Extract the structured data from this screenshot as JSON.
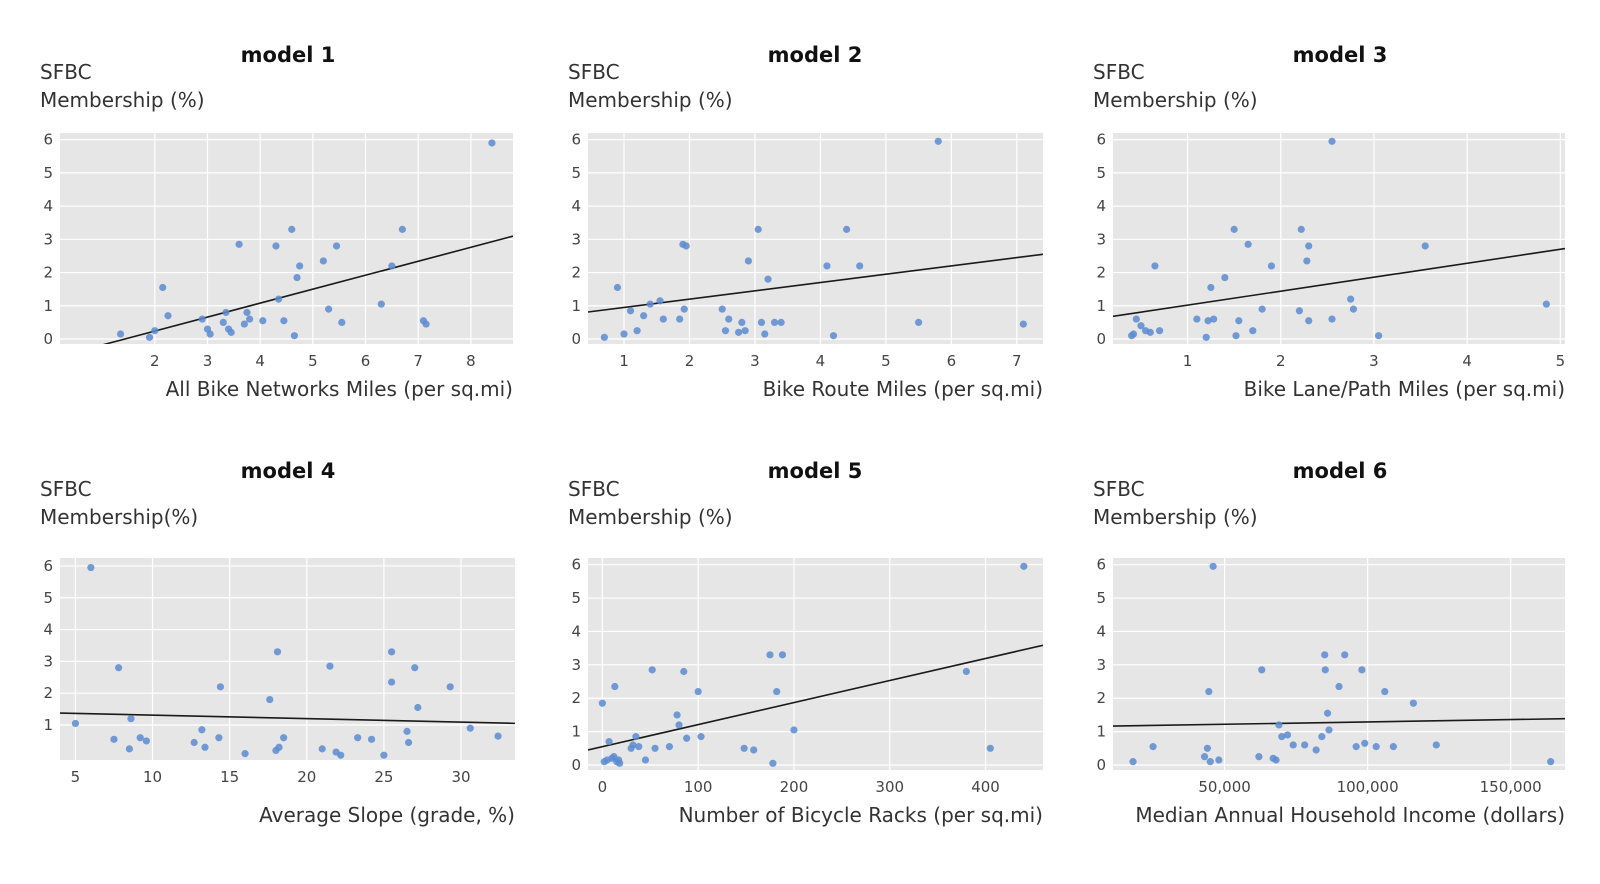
{
  "chart_data": [
    {
      "type": "scatter",
      "title": "model 1",
      "ylabel_lines": [
        "SFBC",
        "Membership (%)"
      ],
      "xlabel": "All Bike Networks Miles (per sq.mi)",
      "xlim": [
        0.2,
        8.8
      ],
      "ylim": [
        -0.15,
        6.2
      ],
      "xticks": [
        2,
        3,
        4,
        5,
        6,
        7,
        8
      ],
      "xtick_labels": [
        "2",
        "3",
        "4",
        "5",
        "6",
        "7",
        "8"
      ],
      "yticks": [
        0,
        1,
        2,
        3,
        4,
        5,
        6
      ],
      "ytick_labels": [
        "0",
        "1",
        "2",
        "3",
        "4",
        "5",
        "6"
      ],
      "points": [
        [
          1.35,
          0.15
        ],
        [
          1.9,
          0.05
        ],
        [
          2.0,
          0.25
        ],
        [
          2.15,
          1.55
        ],
        [
          2.25,
          0.7
        ],
        [
          2.9,
          0.6
        ],
        [
          3.0,
          0.3
        ],
        [
          3.05,
          0.15
        ],
        [
          3.3,
          0.5
        ],
        [
          3.35,
          0.8
        ],
        [
          3.4,
          0.3
        ],
        [
          3.45,
          0.2
        ],
        [
          3.6,
          2.85
        ],
        [
          3.7,
          0.45
        ],
        [
          3.75,
          0.8
        ],
        [
          3.8,
          0.6
        ],
        [
          4.05,
          0.55
        ],
        [
          4.3,
          2.8
        ],
        [
          4.35,
          1.2
        ],
        [
          4.45,
          0.55
        ],
        [
          4.6,
          3.3
        ],
        [
          4.65,
          0.1
        ],
        [
          4.7,
          1.85
        ],
        [
          4.75,
          2.2
        ],
        [
          5.2,
          2.35
        ],
        [
          5.3,
          0.9
        ],
        [
          5.45,
          2.8
        ],
        [
          5.55,
          0.5
        ],
        [
          6.3,
          1.05
        ],
        [
          6.5,
          2.2
        ],
        [
          6.7,
          3.3
        ],
        [
          7.1,
          0.55
        ],
        [
          7.15,
          0.45
        ],
        [
          8.4,
          5.9
        ]
      ],
      "fit": {
        "slope": 0.42,
        "intercept": -0.6
      }
    },
    {
      "type": "scatter",
      "title": "model 2",
      "ylabel_lines": [
        "SFBC",
        "Membership (%)"
      ],
      "xlabel": "Bike Route Miles (per sq.mi)",
      "xlim": [
        0.45,
        7.4
      ],
      "ylim": [
        -0.15,
        6.2
      ],
      "xticks": [
        1,
        2,
        3,
        4,
        5,
        6,
        7
      ],
      "xtick_labels": [
        "1",
        "2",
        "3",
        "4",
        "5",
        "6",
        "7"
      ],
      "yticks": [
        0,
        1,
        2,
        3,
        4,
        5,
        6
      ],
      "ytick_labels": [
        "0",
        "1",
        "2",
        "3",
        "4",
        "5",
        "6"
      ],
      "points": [
        [
          0.7,
          0.05
        ],
        [
          0.9,
          1.55
        ],
        [
          1.0,
          0.15
        ],
        [
          1.1,
          0.85
        ],
        [
          1.2,
          0.25
        ],
        [
          1.3,
          0.7
        ],
        [
          1.4,
          1.05
        ],
        [
          1.55,
          1.15
        ],
        [
          1.6,
          0.6
        ],
        [
          1.85,
          0.6
        ],
        [
          1.9,
          2.85
        ],
        [
          1.92,
          0.9
        ],
        [
          1.95,
          2.8
        ],
        [
          2.5,
          0.9
        ],
        [
          2.55,
          0.25
        ],
        [
          2.6,
          0.6
        ],
        [
          2.75,
          0.2
        ],
        [
          2.8,
          0.5
        ],
        [
          2.85,
          0.25
        ],
        [
          2.9,
          2.35
        ],
        [
          3.05,
          3.3
        ],
        [
          3.1,
          0.5
        ],
        [
          3.15,
          0.15
        ],
        [
          3.2,
          1.8
        ],
        [
          3.3,
          0.5
        ],
        [
          3.4,
          0.5
        ],
        [
          4.1,
          2.2
        ],
        [
          4.2,
          0.1
        ],
        [
          4.4,
          3.3
        ],
        [
          4.6,
          2.2
        ],
        [
          5.5,
          0.5
        ],
        [
          5.8,
          5.95
        ],
        [
          7.1,
          0.45
        ]
      ],
      "fit": {
        "slope": 0.25,
        "intercept": 0.7
      }
    },
    {
      "type": "scatter",
      "title": "model 3",
      "ylabel_lines": [
        "SFBC",
        "Membership (%)"
      ],
      "xlabel": "Bike Lane/Path Miles (per sq.mi)",
      "xlim": [
        0.2,
        5.05
      ],
      "ylim": [
        -0.15,
        6.2
      ],
      "xticks": [
        1,
        2,
        3,
        4,
        5
      ],
      "xtick_labels": [
        "1",
        "2",
        "3",
        "4",
        "5"
      ],
      "yticks": [
        0,
        1,
        2,
        3,
        4,
        5,
        6
      ],
      "ytick_labels": [
        "0",
        "1",
        "2",
        "3",
        "4",
        "5",
        "6"
      ],
      "points": [
        [
          0.4,
          0.1
        ],
        [
          0.42,
          0.15
        ],
        [
          0.45,
          0.6
        ],
        [
          0.5,
          0.4
        ],
        [
          0.55,
          0.25
        ],
        [
          0.6,
          0.2
        ],
        [
          0.65,
          2.2
        ],
        [
          0.7,
          0.25
        ],
        [
          1.1,
          0.6
        ],
        [
          1.2,
          0.05
        ],
        [
          1.22,
          0.55
        ],
        [
          1.25,
          1.55
        ],
        [
          1.28,
          0.6
        ],
        [
          1.4,
          1.85
        ],
        [
          1.5,
          3.3
        ],
        [
          1.52,
          0.1
        ],
        [
          1.55,
          0.55
        ],
        [
          1.65,
          2.85
        ],
        [
          1.7,
          0.25
        ],
        [
          1.8,
          0.9
        ],
        [
          1.9,
          2.2
        ],
        [
          2.2,
          0.85
        ],
        [
          2.22,
          3.3
        ],
        [
          2.28,
          2.35
        ],
        [
          2.3,
          2.8
        ],
        [
          2.3,
          0.55
        ],
        [
          2.55,
          5.95
        ],
        [
          2.55,
          0.6
        ],
        [
          2.75,
          1.2
        ],
        [
          2.78,
          0.9
        ],
        [
          3.05,
          0.1
        ],
        [
          3.55,
          2.8
        ],
        [
          4.85,
          1.05
        ]
      ],
      "fit": {
        "slope": 0.42,
        "intercept": 0.6
      }
    },
    {
      "type": "scatter",
      "title": "model 4",
      "ylabel_lines": [
        "SFBC",
        "Membership(%)"
      ],
      "xlabel": "Average Slope (grade, %)",
      "xlim": [
        4.0,
        33.5
      ],
      "ylim": [
        -0.1,
        6.25
      ],
      "xticks": [
        5,
        10,
        15,
        20,
        25,
        30
      ],
      "xtick_labels": [
        "5",
        "10",
        "15",
        "20",
        "25",
        "30"
      ],
      "yticks": [
        1,
        2,
        3,
        4,
        5,
        6
      ],
      "ytick_labels": [
        "1",
        "2",
        "3",
        "4",
        "5",
        "6"
      ],
      "points": [
        [
          5.0,
          1.05
        ],
        [
          6.0,
          5.95
        ],
        [
          7.5,
          0.55
        ],
        [
          7.8,
          2.8
        ],
        [
          8.5,
          0.25
        ],
        [
          8.6,
          1.2
        ],
        [
          9.2,
          0.6
        ],
        [
          9.6,
          0.5
        ],
        [
          12.7,
          0.45
        ],
        [
          13.2,
          0.85
        ],
        [
          13.4,
          0.3
        ],
        [
          14.3,
          0.6
        ],
        [
          14.4,
          2.2
        ],
        [
          16.0,
          0.1
        ],
        [
          17.6,
          1.8
        ],
        [
          18.0,
          0.2
        ],
        [
          18.1,
          3.3
        ],
        [
          18.2,
          0.3
        ],
        [
          18.5,
          0.6
        ],
        [
          21.0,
          0.25
        ],
        [
          21.5,
          2.85
        ],
        [
          21.9,
          0.15
        ],
        [
          22.2,
          0.05
        ],
        [
          23.3,
          0.6
        ],
        [
          24.2,
          0.55
        ],
        [
          25.0,
          0.05
        ],
        [
          25.5,
          3.3
        ],
        [
          25.5,
          2.35
        ],
        [
          26.5,
          0.8
        ],
        [
          26.6,
          0.45
        ],
        [
          27.0,
          2.8
        ],
        [
          27.2,
          1.55
        ],
        [
          29.3,
          2.2
        ],
        [
          30.6,
          0.9
        ],
        [
          32.4,
          0.65
        ]
      ],
      "fit": {
        "slope": -0.011,
        "intercept": 1.42
      }
    },
    {
      "type": "scatter",
      "title": "model 5",
      "ylabel_lines": [
        "SFBC",
        "Membership (%)"
      ],
      "xlabel": "Number of Bicycle Racks (per sq.mi)",
      "xlim": [
        -15,
        460
      ],
      "ylim": [
        -0.15,
        6.2
      ],
      "xticks": [
        0,
        100,
        200,
        300,
        400
      ],
      "xtick_labels": [
        "0",
        "100",
        "200",
        "300",
        "400"
      ],
      "yticks": [
        0,
        1,
        2,
        3,
        4,
        5,
        6
      ],
      "ytick_labels": [
        "0",
        "1",
        "2",
        "3",
        "4",
        "5",
        "6"
      ],
      "points": [
        [
          0,
          1.85
        ],
        [
          2,
          0.1
        ],
        [
          5,
          0.15
        ],
        [
          7,
          0.7
        ],
        [
          10,
          0.2
        ],
        [
          12,
          0.25
        ],
        [
          13,
          2.35
        ],
        [
          15,
          0.1
        ],
        [
          17,
          0.15
        ],
        [
          18,
          0.05
        ],
        [
          30,
          0.5
        ],
        [
          32,
          0.6
        ],
        [
          35,
          0.85
        ],
        [
          38,
          0.55
        ],
        [
          45,
          0.15
        ],
        [
          52,
          2.85
        ],
        [
          55,
          0.5
        ],
        [
          70,
          0.55
        ],
        [
          78,
          1.5
        ],
        [
          80,
          1.2
        ],
        [
          85,
          2.8
        ],
        [
          88,
          0.8
        ],
        [
          100,
          2.2
        ],
        [
          103,
          0.85
        ],
        [
          148,
          0.5
        ],
        [
          158,
          0.45
        ],
        [
          175,
          3.3
        ],
        [
          178,
          0.05
        ],
        [
          182,
          2.2
        ],
        [
          188,
          3.3
        ],
        [
          200,
          1.05
        ],
        [
          380,
          2.8
        ],
        [
          405,
          0.5
        ],
        [
          440,
          5.95
        ]
      ],
      "fit": {
        "slope": 0.0066,
        "intercept": 0.55
      }
    },
    {
      "type": "scatter",
      "title": "model 6",
      "ylabel_lines": [
        "SFBC",
        "Membership (%)"
      ],
      "xlabel": "Median Annual Household Income (dollars)",
      "xlim": [
        11000,
        169000
      ],
      "ylim": [
        -0.15,
        6.2
      ],
      "xticks": [
        50000,
        100000,
        150000
      ],
      "xtick_labels": [
        "50,000",
        "100,000",
        "150,000"
      ],
      "yticks": [
        0,
        1,
        2,
        3,
        4,
        5,
        6
      ],
      "ytick_labels": [
        "0",
        "1",
        "2",
        "3",
        "4",
        "5",
        "6"
      ],
      "points": [
        [
          18000,
          0.1
        ],
        [
          25000,
          0.55
        ],
        [
          43000,
          0.25
        ],
        [
          44000,
          0.5
        ],
        [
          44500,
          2.2
        ],
        [
          45000,
          0.1
        ],
        [
          46000,
          5.95
        ],
        [
          48000,
          0.15
        ],
        [
          62000,
          0.25
        ],
        [
          63000,
          2.85
        ],
        [
          67000,
          0.2
        ],
        [
          68000,
          0.15
        ],
        [
          69000,
          1.2
        ],
        [
          70000,
          0.85
        ],
        [
          72000,
          0.9
        ],
        [
          74000,
          0.6
        ],
        [
          78000,
          0.6
        ],
        [
          82000,
          0.45
        ],
        [
          84000,
          0.85
        ],
        [
          85000,
          3.3
        ],
        [
          85200,
          2.85
        ],
        [
          86000,
          1.55
        ],
        [
          86500,
          1.05
        ],
        [
          90000,
          2.35
        ],
        [
          92000,
          3.3
        ],
        [
          96000,
          0.55
        ],
        [
          98000,
          2.85
        ],
        [
          99000,
          0.65
        ],
        [
          103000,
          0.55
        ],
        [
          106000,
          2.2
        ],
        [
          109000,
          0.55
        ],
        [
          116000,
          1.85
        ],
        [
          124000,
          0.6
        ],
        [
          164000,
          0.1
        ]
      ],
      "fit": {
        "slope": 1.4e-06,
        "intercept": 1.15
      }
    }
  ]
}
